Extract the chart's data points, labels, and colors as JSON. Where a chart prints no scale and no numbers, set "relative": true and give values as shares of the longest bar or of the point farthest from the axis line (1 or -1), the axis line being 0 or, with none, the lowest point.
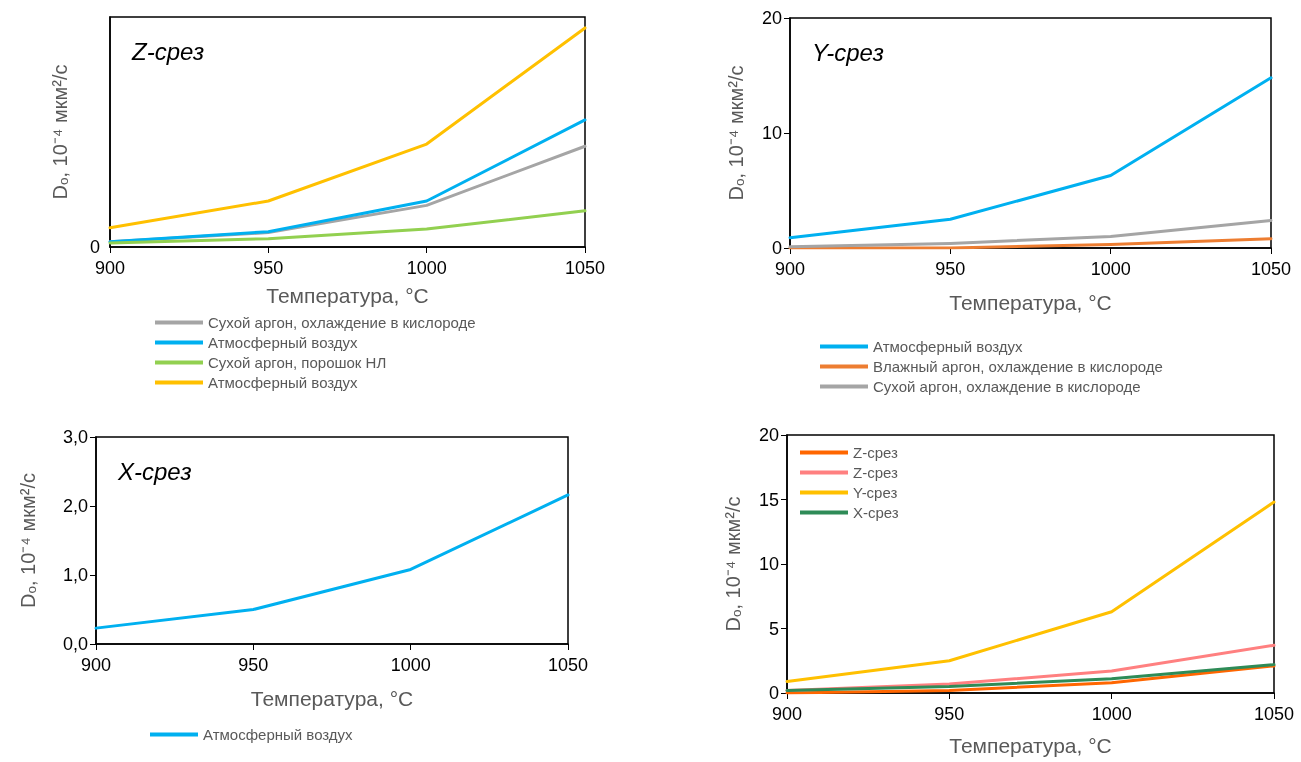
{
  "chart_data": [
    {
      "type": "line",
      "relative": true,
      "annotations": [
        "Z-срез",
        "0"
      ],
      "xlabel": "Температура, °C",
      "ylabel": "Dₒ, 10⁻⁴ мкм²/с",
      "xlim": [
        900,
        1050
      ],
      "xticks": [
        900,
        950,
        1000,
        1050
      ],
      "legend": "bottom",
      "marker": "none",
      "line_style": "solid",
      "grid": false,
      "x": [
        900,
        950,
        1000,
        1050
      ],
      "series": [
        {
          "name": "Сухой аргон, охлаждение в кислороде",
          "color": "#a5a5a5",
          "values": [
            0.024,
            0.066,
            0.19,
            0.46
          ]
        },
        {
          "name": "Атмосферный воздух",
          "color": "#00b0f0",
          "values": [
            0.024,
            0.07,
            0.21,
            0.58
          ]
        },
        {
          "name": "Сухой аргон, порошок НЛ",
          "color": "#92d050",
          "values": [
            0.018,
            0.038,
            0.082,
            0.165
          ]
        },
        {
          "name": "Атмосферный воздух",
          "color": "#ffc000",
          "values": [
            0.088,
            0.21,
            0.47,
            1
          ]
        }
      ]
    },
    {
      "type": "line",
      "annotations": [
        "Y-срез"
      ],
      "xlabel": "Температура, °C",
      "ylabel": "Dₒ, 10⁻⁴ мкм²/с",
      "xlim": [
        900,
        1050
      ],
      "xticks": [
        900,
        950,
        1000,
        1050
      ],
      "ylim": [
        0,
        20
      ],
      "yticks": [
        0,
        10,
        20
      ],
      "legend": "bottom",
      "marker": "none",
      "line_style": "solid",
      "grid": false,
      "x": [
        900,
        950,
        1000,
        1050
      ],
      "series": [
        {
          "name": "Атмосферный воздух",
          "color": "#00b0f0",
          "values": [
            0.9,
            2.5,
            6.3,
            14.8
          ]
        },
        {
          "name": "Влажный аргон, охлаждение в кислороде",
          "color": "#ed7d31",
          "values": [
            0,
            0,
            0.3,
            0.8
          ]
        },
        {
          "name": "Сухой аргон, охлаждение в кислороде",
          "color": "#a5a5a5",
          "values": [
            0.1,
            0.4,
            1,
            2.4
          ]
        }
      ]
    },
    {
      "type": "line",
      "annotations": [
        "X-срез"
      ],
      "xlabel": "Температура, °C",
      "ylabel": "Dₒ, 10⁻⁴ мкм²/с",
      "xlim": [
        900,
        1050
      ],
      "xticks": [
        900,
        950,
        1000,
        1050
      ],
      "ylim": [
        0,
        3
      ],
      "yticks": [
        {
          "value": 0,
          "label": "0,0"
        },
        {
          "value": 1,
          "label": "1,0"
        },
        {
          "value": 2,
          "label": "2,0"
        },
        {
          "value": 3,
          "label": "3,0"
        }
      ],
      "legend": "bottom",
      "marker": "none",
      "line_style": "solid",
      "grid": false,
      "x": [
        900,
        950,
        1000,
        1050
      ],
      "series": [
        {
          "name": "Атмосферный воздух",
          "color": "#00b0f0",
          "values": [
            0.23,
            0.5,
            1.08,
            2.16
          ]
        }
      ]
    },
    {
      "type": "line",
      "xlabel": "Температура, °C",
      "ylabel": "Dₒ, 10⁻⁴ мкм²/с",
      "xlim": [
        900,
        1050
      ],
      "xticks": [
        900,
        950,
        1000,
        1050
      ],
      "ylim": [
        0,
        20
      ],
      "yticks": [
        0,
        5,
        10,
        15,
        20
      ],
      "legend": "top left",
      "marker": "none",
      "line_style": "solid",
      "grid": false,
      "x": [
        900,
        950,
        1000,
        1050
      ],
      "series": [
        {
          "name": "Z-срез",
          "color": "#ff6600",
          "values": [
            0,
            0.2,
            0.8,
            2.1
          ]
        },
        {
          "name": "Z-срез",
          "color": "#ff8080",
          "values": [
            0.2,
            0.7,
            1.7,
            3.7
          ]
        },
        {
          "name": "Y-срез",
          "color": "#ffc000",
          "values": [
            0.9,
            2.5,
            6.3,
            14.8
          ]
        },
        {
          "name": "X-срез",
          "color": "#2e8b57",
          "values": [
            0.2,
            0.5,
            1.1,
            2.2
          ]
        }
      ]
    }
  ]
}
